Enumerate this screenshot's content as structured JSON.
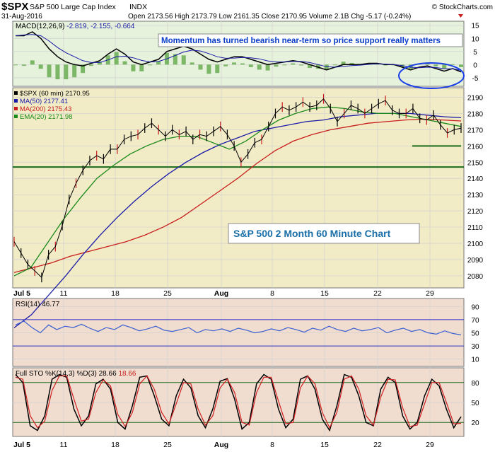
{
  "header": {
    "symbol": "$SPX",
    "name": "S&P 500 Large Cap Index",
    "exchange": "INDX",
    "date": "31-Aug-2016",
    "stats": "Open 2173.56  High 2173.79  Low 2161.35  Close 2170.95  Volume 2.1B  Chg -5.17 (-0.24%)",
    "watermark": "© StockCharts.com"
  },
  "colors": {
    "price_bg": "#f2ecc6",
    "ind_bg": "#f1ddd0",
    "macd_bg": "#e6f2dc",
    "price": "#000000",
    "ma50": "#1a1aa8",
    "ma200": "#c81e1e",
    "ema20": "#1a8a1a",
    "rsi": "#3a5fd0",
    "hist": "#60a848",
    "annot": "#0a3ec8",
    "support": "#1a6a1a"
  },
  "chart_data": [
    {
      "type": "line",
      "panel": "MACD",
      "label": "MACD(12,26,9)",
      "values_text": "-2.819, -2.155, -0.664",
      "series": [
        {
          "name": "MACD",
          "values": [
            11,
            11,
            12.5,
            10,
            6,
            3,
            1,
            0,
            -0.5,
            0.5,
            1.5,
            4,
            6,
            4,
            1,
            0,
            1,
            2,
            5,
            6,
            7,
            6,
            4,
            2,
            1,
            2,
            3,
            3,
            2,
            1,
            0,
            0.5,
            1,
            1.5,
            1,
            0,
            -1,
            -2,
            -1,
            0,
            0,
            0,
            0.5,
            0.5,
            0,
            0,
            -1,
            -2,
            -1,
            -0.5,
            -1.5,
            -2.5,
            -1.5,
            -2.8
          ]
        },
        {
          "name": "Signal",
          "values": [
            11,
            11.3,
            11.5,
            11,
            9,
            6.5,
            4.5,
            3,
            1.5,
            0.8,
            0.8,
            1.8,
            3,
            3.2,
            2.6,
            1.6,
            1,
            1.2,
            2.2,
            3.5,
            4.8,
            5.5,
            5.2,
            4.2,
            3,
            2.4,
            2.5,
            2.7,
            2.6,
            2.2,
            1.4,
            1,
            1,
            1.2,
            1.2,
            0.8,
            0,
            -0.8,
            -1,
            -0.7,
            -0.4,
            -0.2,
            0.1,
            0.3,
            0.2,
            0,
            -0.4,
            -1,
            -1.2,
            -1,
            -1.1,
            -1.6,
            -1.6,
            -2.2
          ]
        }
      ],
      "yticks": [
        15,
        10,
        5,
        0,
        -5
      ],
      "ylim": [
        -8,
        16
      ],
      "annotation": "Momentum has turned bearish near-term so price support really matters"
    },
    {
      "type": "line",
      "panel": "Price",
      "legend": [
        {
          "name": "$SPX (60 min)",
          "value": "2170.95"
        },
        {
          "name": "MA(50)",
          "value": "2177.41"
        },
        {
          "name": "MA(200)",
          "value": "2175.43"
        },
        {
          "name": "EMA(20)",
          "value": "2171.98"
        }
      ],
      "yticks": [
        2190,
        2180,
        2170,
        2160,
        2150,
        2140,
        2130,
        2120,
        2110,
        2100,
        2090,
        2080
      ],
      "ylim": [
        2073,
        2195
      ],
      "price": [
        2101,
        2094,
        2087,
        2083,
        2079,
        2093,
        2098,
        2111,
        2127,
        2137,
        2145,
        2151,
        2154,
        2152,
        2158,
        2158,
        2164,
        2166,
        2167,
        2171,
        2174,
        2170,
        2166,
        2170,
        2167,
        2169,
        2164,
        2167,
        2166,
        2169,
        2172,
        2167,
        2160,
        2150,
        2155,
        2162,
        2164,
        2172,
        2180,
        2184,
        2182,
        2184,
        2187,
        2184,
        2185,
        2189,
        2183,
        2175,
        2180,
        2185,
        2183,
        2180,
        2183,
        2186,
        2188,
        2182,
        2180,
        2180,
        2183,
        2177,
        2176,
        2179,
        2173,
        2168,
        2170,
        2171
      ],
      "ma50": [
        2048,
        2056,
        2068,
        2080,
        2093,
        2105,
        2116,
        2126,
        2135,
        2143,
        2150,
        2156,
        2161,
        2165,
        2169,
        2171,
        2173,
        2175,
        2176,
        2178,
        2179,
        2180,
        2180,
        2180,
        2179,
        2178,
        2177.4
      ],
      "ma200": [
        2082,
        2085,
        2088,
        2092,
        2095,
        2098,
        2101,
        2105,
        2110,
        2116,
        2124,
        2132,
        2140,
        2149,
        2157,
        2163,
        2167,
        2170,
        2172,
        2174,
        2175,
        2176,
        2176.5,
        2176,
        2175.4
      ],
      "ema20": [
        2080,
        2085,
        2100,
        2115,
        2128,
        2140,
        2148,
        2155,
        2160,
        2164,
        2166,
        2166,
        2162,
        2158,
        2163,
        2170,
        2176,
        2180,
        2183,
        2184,
        2183,
        2181,
        2180,
        2180,
        2178,
        2176,
        2174,
        2172
      ],
      "support_upper": 2160,
      "support_lower": 2147,
      "title_box": "S&P 500 2 Month 60 Minute Chart"
    },
    {
      "type": "line",
      "panel": "RSI",
      "label": "RSI(14)",
      "value": "46.77",
      "yticks": [
        90,
        70,
        50,
        30,
        10
      ],
      "ylim": [
        0,
        100
      ],
      "values": [
        62,
        68,
        58,
        50,
        62,
        55,
        60,
        58,
        63,
        57,
        52,
        58,
        55,
        62,
        58,
        53,
        56,
        60,
        54,
        52,
        55,
        58,
        50,
        55,
        53,
        56,
        52,
        57,
        54,
        50,
        52,
        56,
        53,
        58,
        55,
        51,
        57,
        54,
        60,
        55,
        52,
        57,
        53,
        55,
        58,
        50,
        54,
        57,
        52,
        55,
        50,
        48,
        53,
        49,
        46.77
      ]
    },
    {
      "type": "line",
      "panel": "Stochastic",
      "label": "Full STO %K(14,3) %D(3)",
      "value_k": "28.66",
      "value_d": "18.66",
      "yticks": [
        80,
        50,
        20
      ],
      "ylim": [
        0,
        100
      ],
      "k": [
        92,
        80,
        15,
        8,
        30,
        85,
        92,
        88,
        40,
        15,
        30,
        78,
        85,
        70,
        20,
        10,
        45,
        88,
        90,
        60,
        25,
        15,
        60,
        85,
        72,
        30,
        12,
        40,
        82,
        86,
        55,
        10,
        20,
        78,
        92,
        85,
        40,
        12,
        25,
        85,
        90,
        70,
        25,
        8,
        45,
        92,
        88,
        60,
        20,
        15,
        70,
        88,
        80,
        30,
        10,
        20,
        60,
        85,
        75,
        40,
        12,
        28.66
      ],
      "d": [
        88,
        85,
        30,
        12,
        22,
        68,
        90,
        90,
        55,
        22,
        25,
        65,
        84,
        75,
        32,
        14,
        35,
        78,
        90,
        70,
        35,
        18,
        48,
        80,
        78,
        40,
        16,
        30,
        72,
        85,
        65,
        20,
        16,
        65,
        88,
        88,
        52,
        18,
        20,
        72,
        90,
        78,
        35,
        12,
        35,
        85,
        90,
        70,
        30,
        16,
        58,
        85,
        84,
        42,
        14,
        16,
        48,
        80,
        80,
        50,
        18,
        18.66
      ]
    }
  ],
  "xaxis": {
    "labels": [
      "Jul 5",
      "11",
      "18",
      "25",
      "Aug",
      "8",
      "15",
      "22",
      "29"
    ]
  }
}
